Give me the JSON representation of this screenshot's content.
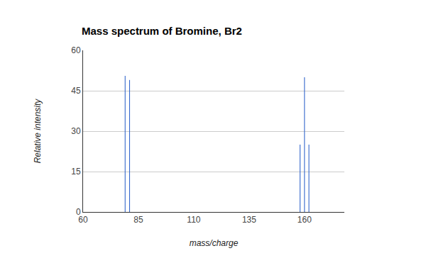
{
  "chart_data": {
    "type": "bar",
    "title": "Mass spectrum of Bromine, Br2",
    "x_label": "mass/charge",
    "y_label": "Relative intensity",
    "x": [
      79,
      81,
      158,
      160,
      162
    ],
    "values": [
      50.5,
      49,
      25,
      50,
      25
    ],
    "color": "#3366cc",
    "xlim": [
      60,
      178
    ],
    "xticks": [
      60,
      85,
      110,
      135,
      160
    ],
    "ylim": [
      0,
      60
    ],
    "yticks": [
      0,
      15,
      30,
      45,
      60
    ],
    "grid": true
  }
}
